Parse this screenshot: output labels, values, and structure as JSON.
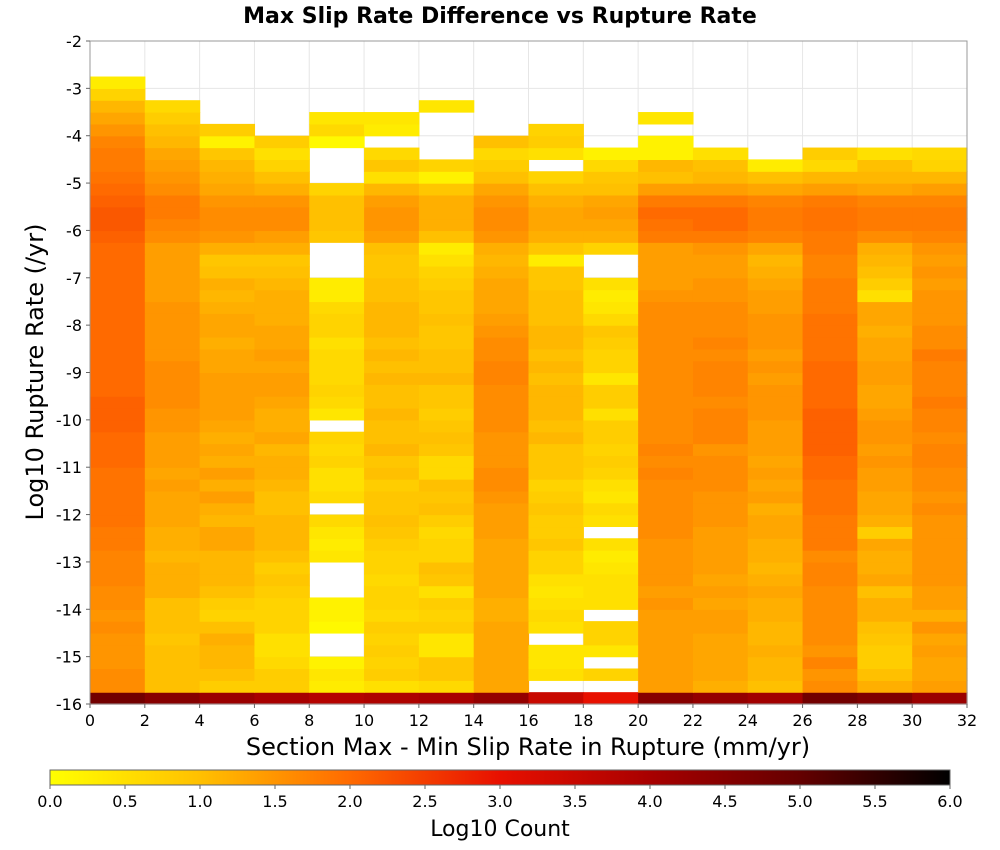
{
  "chart_data": {
    "type": "heatmap",
    "title": "Max Slip Rate Difference vs Rupture Rate",
    "xlabel": "Section Max - Min Slip Rate in Rupture (mm/yr)",
    "ylabel": "Log10 Rupture Rate (/yr)",
    "xlim": [
      0,
      32
    ],
    "ylim": [
      -16,
      -2
    ],
    "x_ticks": [
      "0",
      "2",
      "4",
      "6",
      "8",
      "10",
      "12",
      "14",
      "16",
      "18",
      "20",
      "22",
      "24",
      "26",
      "28",
      "30",
      "32"
    ],
    "y_ticks": [
      "-2",
      "-3",
      "-4",
      "-5",
      "-6",
      "-7",
      "-8",
      "-9",
      "-10",
      "-11",
      "-12",
      "-13",
      "-14",
      "-15",
      "-16"
    ],
    "x_bin_width": 2,
    "y_bin_height": 0.25,
    "x_bin_starts": [
      0,
      2,
      4,
      6,
      8,
      10,
      12,
      14,
      16,
      18,
      20,
      22,
      24,
      26,
      28,
      30
    ],
    "y_bin_starts": [
      -16.0,
      -15.75,
      -15.5,
      -15.25,
      -15.0,
      -14.75,
      -14.5,
      -14.25,
      -14.0,
      -13.75,
      -13.5,
      -13.25,
      -13.0,
      -12.75,
      -12.5,
      -12.25,
      -12.0,
      -11.75,
      -11.5,
      -11.25,
      -11.0,
      -10.75,
      -10.5,
      -10.25,
      -10.0,
      -9.75,
      -9.5,
      -9.25,
      -9.0,
      -8.75,
      -8.5,
      -8.25,
      -8.0,
      -7.75,
      -7.5,
      -7.25,
      -7.0,
      -6.75,
      -6.5,
      -6.25,
      -6.0,
      -5.75,
      -5.5,
      -5.25,
      -5.0,
      -4.75,
      -4.5,
      -4.25,
      -4.0,
      -3.75,
      -3.5,
      -3.25,
      -3.0,
      -2.75,
      -2.5,
      -2.25
    ],
    "z_values_note_rows": "each row = one y bin (from -16 upward), each column = one x bin (from 0 to 30); null = empty",
    "z_values": [
      [
        4.8,
        4.5,
        4.2,
        4.0,
        3.8,
        3.9,
        4.0,
        4.3,
        3.5,
        3.0,
        4.5,
        4.3,
        4.1,
        4.8,
        4.6,
        4.2
      ],
      [
        1.6,
        1.0,
        0.8,
        0.8,
        0.3,
        0.5,
        0.6,
        1.3,
        null,
        null,
        1.4,
        1.2,
        1.0,
        1.6,
        1.2,
        1.4
      ],
      [
        1.6,
        1.0,
        1.0,
        0.8,
        0.4,
        0.8,
        0.9,
        1.3,
        0.5,
        0.7,
        1.4,
        1.3,
        1.1,
        1.5,
        1.0,
        1.3
      ],
      [
        1.5,
        1.0,
        1.1,
        0.6,
        0.2,
        0.7,
        0.9,
        1.3,
        0.4,
        null,
        1.4,
        1.3,
        1.1,
        1.7,
        0.8,
        1.3
      ],
      [
        1.5,
        1.0,
        1.1,
        0.5,
        null,
        0.8,
        0.4,
        1.3,
        0.4,
        0.4,
        1.4,
        1.3,
        1.2,
        1.5,
        0.8,
        1.4
      ],
      [
        1.5,
        0.9,
        1.2,
        0.5,
        null,
        0.7,
        0.4,
        1.3,
        null,
        0.7,
        1.4,
        1.3,
        1.1,
        1.6,
        0.9,
        1.3
      ],
      [
        1.6,
        1.0,
        1.0,
        0.7,
        0.1,
        0.8,
        0.8,
        1.3,
        0.5,
        0.7,
        1.4,
        1.4,
        1.1,
        1.6,
        1.0,
        1.5
      ],
      [
        1.5,
        1.0,
        0.7,
        0.7,
        0.2,
        0.6,
        0.7,
        1.2,
        0.6,
        null,
        1.4,
        1.4,
        1.2,
        1.6,
        1.2,
        1.2
      ],
      [
        1.6,
        1.0,
        0.8,
        0.7,
        0.2,
        0.7,
        0.8,
        1.2,
        0.5,
        0.5,
        1.5,
        1.3,
        1.2,
        1.6,
        1.2,
        1.4
      ],
      [
        1.6,
        1.2,
        1.0,
        0.8,
        null,
        0.7,
        0.5,
        1.3,
        0.4,
        0.5,
        1.4,
        1.4,
        1.3,
        1.6,
        1.0,
        1.4
      ],
      [
        1.7,
        1.2,
        1.1,
        0.9,
        null,
        0.6,
        0.9,
        1.3,
        0.5,
        0.5,
        1.5,
        1.3,
        1.2,
        1.7,
        1.3,
        1.5
      ],
      [
        1.7,
        1.2,
        1.1,
        0.8,
        null,
        0.7,
        1.0,
        1.3,
        0.7,
        0.4,
        1.5,
        1.4,
        1.1,
        1.7,
        1.2,
        1.5
      ],
      [
        1.7,
        1.1,
        1.1,
        1.0,
        0.4,
        0.7,
        0.7,
        1.3,
        0.7,
        0.3,
        1.5,
        1.4,
        1.2,
        1.6,
        1.2,
        1.5
      ],
      [
        1.8,
        1.2,
        1.3,
        1.1,
        0.3,
        0.8,
        0.7,
        1.3,
        0.9,
        0.5,
        1.5,
        1.4,
        1.2,
        1.8,
        1.3,
        1.5
      ],
      [
        1.8,
        1.2,
        1.3,
        1.1,
        0.4,
        0.9,
        0.6,
        1.4,
        0.8,
        null,
        1.6,
        1.4,
        1.3,
        1.8,
        0.8,
        1.5
      ],
      [
        1.9,
        1.3,
        1.1,
        1.1,
        0.6,
        1.0,
        0.8,
        1.4,
        0.8,
        0.5,
        1.6,
        1.5,
        1.3,
        1.8,
        1.2,
        1.5
      ],
      [
        1.9,
        1.3,
        1.2,
        1.0,
        null,
        0.9,
        1.0,
        1.4,
        0.9,
        0.6,
        1.6,
        1.5,
        1.2,
        1.9,
        1.3,
        1.6
      ],
      [
        1.9,
        1.3,
        1.4,
        1.0,
        0.6,
        0.9,
        0.9,
        1.5,
        0.8,
        0.4,
        1.6,
        1.5,
        1.4,
        1.9,
        1.3,
        1.5
      ],
      [
        1.9,
        1.4,
        1.2,
        1.1,
        0.5,
        0.8,
        1.0,
        1.6,
        0.7,
        0.5,
        1.6,
        1.6,
        1.3,
        1.9,
        1.4,
        1.6
      ],
      [
        1.9,
        1.3,
        1.4,
        1.2,
        0.5,
        1.0,
        0.6,
        1.6,
        0.9,
        0.7,
        1.7,
        1.6,
        1.4,
        2.0,
        1.4,
        1.6
      ],
      [
        2.0,
        1.4,
        1.2,
        1.2,
        0.7,
        0.9,
        0.6,
        1.5,
        0.9,
        0.8,
        1.6,
        1.6,
        1.3,
        2.0,
        1.5,
        1.7
      ],
      [
        2.0,
        1.4,
        1.3,
        1.1,
        0.6,
        1.1,
        0.9,
        1.5,
        0.9,
        0.7,
        1.7,
        1.5,
        1.4,
        2.1,
        1.4,
        1.7
      ],
      [
        2.0,
        1.4,
        1.2,
        1.3,
        0.7,
        1.0,
        1.0,
        1.5,
        1.1,
        0.8,
        1.6,
        1.7,
        1.4,
        2.1,
        1.5,
        1.6
      ],
      [
        2.1,
        1.5,
        1.3,
        1.2,
        null,
        1.0,
        0.9,
        1.6,
        1.0,
        0.8,
        1.6,
        1.7,
        1.4,
        2.1,
        1.5,
        1.7
      ],
      [
        2.1,
        1.5,
        1.4,
        1.2,
        0.4,
        1.1,
        0.8,
        1.6,
        1.1,
        0.5,
        1.6,
        1.7,
        1.5,
        2.1,
        1.4,
        1.7
      ],
      [
        2.1,
        1.6,
        1.4,
        1.3,
        0.6,
        1.0,
        0.9,
        1.6,
        1.1,
        0.8,
        1.6,
        1.6,
        1.5,
        2.0,
        1.3,
        1.8
      ],
      [
        2.0,
        1.6,
        1.4,
        1.4,
        0.7,
        1.0,
        0.9,
        1.6,
        1.1,
        0.8,
        1.6,
        1.7,
        1.5,
        2.0,
        1.3,
        1.7
      ],
      [
        2.0,
        1.6,
        1.4,
        1.4,
        0.6,
        1.1,
        1.1,
        1.7,
        1.0,
        0.4,
        1.6,
        1.7,
        1.4,
        2.0,
        1.4,
        1.7
      ],
      [
        2.0,
        1.6,
        1.3,
        1.3,
        0.6,
        1.0,
        1.0,
        1.7,
        1.1,
        0.7,
        1.6,
        1.7,
        1.5,
        2.0,
        1.4,
        1.7
      ],
      [
        2.0,
        1.5,
        1.3,
        1.4,
        0.6,
        1.1,
        1.0,
        1.6,
        1.0,
        0.7,
        1.6,
        1.6,
        1.4,
        1.9,
        1.3,
        1.8
      ],
      [
        2.0,
        1.5,
        1.2,
        1.3,
        0.5,
        1.0,
        0.9,
        1.6,
        1.1,
        0.8,
        1.6,
        1.7,
        1.5,
        1.9,
        1.3,
        1.6
      ],
      [
        2.0,
        1.5,
        1.3,
        1.3,
        0.7,
        1.1,
        0.9,
        1.5,
        1.1,
        0.9,
        1.6,
        1.6,
        1.5,
        1.9,
        1.2,
        1.6
      ],
      [
        2.0,
        1.5,
        1.3,
        1.2,
        0.7,
        1.1,
        1.0,
        1.4,
        1.0,
        0.6,
        1.6,
        1.6,
        1.5,
        1.9,
        1.3,
        1.5
      ],
      [
        2.0,
        1.5,
        1.2,
        1.2,
        0.6,
        1.1,
        0.9,
        1.3,
        1.0,
        0.4,
        1.6,
        1.6,
        1.4,
        1.8,
        1.3,
        1.5
      ],
      [
        2.0,
        1.4,
        1.1,
        1.2,
        0.3,
        1.0,
        0.9,
        1.3,
        1.0,
        0.3,
        1.5,
        1.5,
        1.4,
        1.8,
        0.5,
        1.5
      ],
      [
        2.0,
        1.4,
        1.2,
        1.1,
        0.3,
        1.0,
        0.8,
        1.3,
        0.9,
        0.5,
        1.4,
        1.5,
        1.3,
        1.8,
        0.8,
        1.4
      ],
      [
        2.0,
        1.4,
        1.0,
        1.0,
        null,
        0.9,
        0.7,
        1.2,
        0.9,
        null,
        1.4,
        1.4,
        1.2,
        1.7,
        1.0,
        1.5
      ],
      [
        2.0,
        1.4,
        0.9,
        0.9,
        null,
        0.9,
        0.5,
        1.1,
        0.3,
        null,
        1.4,
        1.4,
        1.1,
        1.7,
        1.1,
        1.4
      ],
      [
        2.0,
        1.4,
        1.2,
        1.2,
        null,
        1.0,
        0.3,
        1.2,
        0.9,
        0.7,
        1.4,
        1.5,
        1.3,
        1.8,
        1.2,
        1.5
      ],
      [
        2.1,
        1.6,
        1.5,
        1.4,
        0.9,
        1.4,
        1.0,
        1.5,
        1.2,
        1.2,
        1.8,
        1.8,
        1.7,
        1.8,
        1.6,
        1.7
      ],
      [
        2.2,
        1.7,
        1.6,
        1.6,
        1.0,
        1.5,
        1.2,
        1.6,
        1.3,
        1.3,
        1.9,
        2.0,
        1.8,
        1.9,
        1.8,
        1.8
      ],
      [
        2.2,
        1.8,
        1.6,
        1.6,
        1.0,
        1.5,
        1.2,
        1.6,
        1.3,
        1.4,
        2.0,
        2.0,
        1.8,
        1.9,
        1.8,
        1.8
      ],
      [
        2.1,
        1.8,
        1.5,
        1.5,
        1.0,
        1.4,
        1.2,
        1.5,
        1.2,
        1.3,
        1.8,
        1.8,
        1.7,
        1.8,
        1.7,
        1.7
      ],
      [
        2.0,
        1.6,
        1.3,
        1.2,
        0.7,
        1.1,
        0.9,
        1.3,
        1.0,
        1.0,
        1.4,
        1.4,
        1.3,
        1.4,
        1.3,
        1.4
      ],
      [
        1.9,
        1.5,
        1.2,
        1.0,
        null,
        0.5,
        0.2,
        1.0,
        0.7,
        0.9,
        1.0,
        1.1,
        1.0,
        1.1,
        1.1,
        1.1
      ],
      [
        1.8,
        1.4,
        1.1,
        0.7,
        null,
        0.9,
        0.7,
        0.8,
        null,
        0.6,
        1.1,
        1.0,
        0.3,
        0.6,
        1.0,
        0.7
      ],
      [
        1.8,
        1.3,
        0.9,
        0.5,
        null,
        0.6,
        null,
        0.6,
        0.5,
        0.2,
        0.2,
        0.5,
        null,
        0.8,
        0.5,
        0.6
      ],
      [
        1.7,
        1.1,
        0.2,
        0.8,
        0.1,
        null,
        null,
        1.0,
        0.8,
        null,
        0.2,
        null,
        null,
        null,
        null,
        null
      ],
      [
        1.5,
        1.0,
        0.8,
        null,
        0.6,
        0.3,
        null,
        null,
        0.7,
        null,
        null,
        null,
        null,
        null,
        null,
        null
      ],
      [
        1.3,
        0.8,
        null,
        null,
        0.4,
        0.4,
        null,
        null,
        null,
        null,
        0.4,
        null,
        null,
        null,
        null,
        null
      ],
      [
        1.1,
        0.6,
        null,
        null,
        null,
        null,
        0.4,
        null,
        null,
        null,
        null,
        null,
        null,
        null,
        null,
        null
      ],
      [
        0.7,
        null,
        null,
        null,
        null,
        null,
        null,
        null,
        null,
        null,
        null,
        null,
        null,
        null,
        null,
        null
      ],
      [
        0.3,
        null,
        null,
        null,
        null,
        null,
        null,
        null,
        null,
        null,
        null,
        null,
        null,
        null,
        null,
        null
      ],
      [
        null,
        null,
        null,
        null,
        null,
        null,
        null,
        null,
        null,
        null,
        null,
        null,
        null,
        null,
        null,
        null
      ],
      [
        null,
        null,
        null,
        null,
        null,
        null,
        null,
        null,
        null,
        null,
        null,
        null,
        null,
        null,
        null,
        null
      ],
      [
        null,
        null,
        null,
        null,
        null,
        null,
        null,
        null,
        null,
        null,
        null,
        null,
        null,
        null,
        null,
        null
      ]
    ],
    "colorbar": {
      "label": "Log10 Count",
      "range": [
        0,
        6
      ],
      "ticks": [
        "0.0",
        "0.5",
        "1.0",
        "1.5",
        "2.0",
        "2.5",
        "3.0",
        "3.5",
        "4.0",
        "4.5",
        "5.0",
        "5.5",
        "6.0"
      ],
      "stops": [
        {
          "value": 0,
          "color": "#ffff00"
        },
        {
          "value": 1,
          "color": "#ffc000"
        },
        {
          "value": 2,
          "color": "#ff6a00"
        },
        {
          "value": 3,
          "color": "#e81000"
        },
        {
          "value": 4,
          "color": "#a80000"
        },
        {
          "value": 5,
          "color": "#640000"
        },
        {
          "value": 6,
          "color": "#000000"
        }
      ]
    },
    "grid": true,
    "grid_color": "#e6e6e6"
  }
}
